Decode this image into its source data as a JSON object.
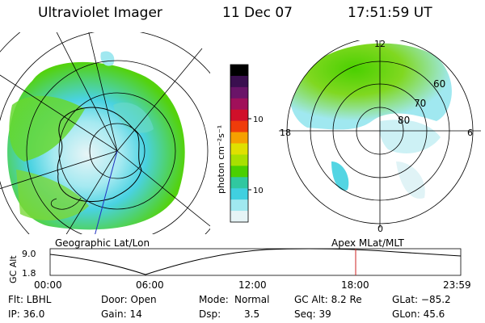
{
  "header": {
    "instrument": "Ultraviolet Imager",
    "date": "11 Dec 07",
    "time": "17:51:59 UT"
  },
  "colorbar": {
    "label": "photon cm⁻²s⁻¹",
    "ticks": [
      "100",
      "10"
    ],
    "colors": [
      "#000000",
      "#3a0f4f",
      "#6a1468",
      "#a0105a",
      "#d0102a",
      "#f03c0a",
      "#f6a000",
      "#e0e000",
      "#a8e000",
      "#4ad000",
      "#30c8a0",
      "#40d0e0",
      "#a0e8f0",
      "#e6f4f6"
    ]
  },
  "left_map": {
    "caption": "Geographic Lat/Lon"
  },
  "right_map": {
    "caption": "Apex MLat/MLT",
    "mlt_labels": {
      "top": "12",
      "left": "18",
      "right": "6",
      "bottom": "0"
    },
    "lat_labels": [
      "60",
      "70",
      "80"
    ]
  },
  "altitude_plot": {
    "ylabel": "GC Alt",
    "ymax_label": "9.0",
    "ymin_label": "1.8",
    "x_ticks": [
      "00:00",
      "06:00",
      "12:00",
      "18:00",
      "23:59"
    ],
    "marker_color": "#cc2222"
  },
  "footer": {
    "filter": "Flt: LBHL",
    "ip": "IP: 36.0",
    "door": "Door: Open",
    "gain": "Gain: 14",
    "mode_label": "Mode:",
    "mode_value": "Normal",
    "dsp_label": "Dsp:",
    "dsp_value": "3.5",
    "gc_alt": "GC Alt: 8.2 Re",
    "seq": "Seq: 39",
    "glat": "GLat: −85.2",
    "glon": "GLon:  45.6"
  }
}
